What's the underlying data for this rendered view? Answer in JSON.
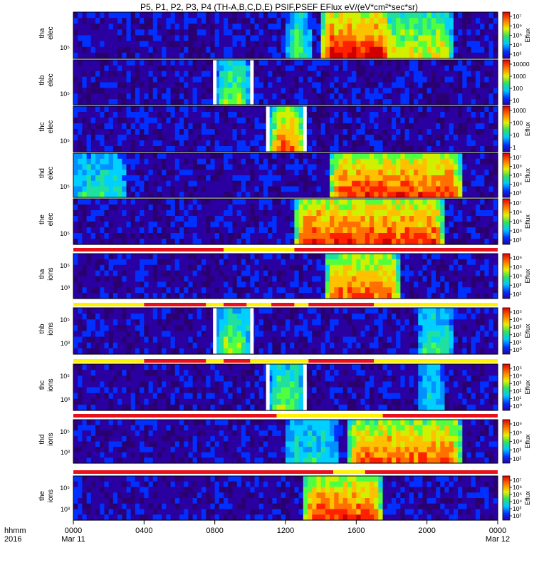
{
  "chart_data": {
    "type": "heatmap",
    "title": "P5, P1, P2, P3, P4 (TH-A,B,C,D,E) PSIF,PSEF EFlux eV/(eV*cm²*sec*sr)",
    "x_axis": {
      "label_line1": "hhmm",
      "label_line2": "2016",
      "ticks": [
        {
          "hour": 0,
          "label": "0000",
          "sublabel": "Mar 11"
        },
        {
          "hour": 4,
          "label": "0400",
          "sublabel": ""
        },
        {
          "hour": 8,
          "label": "0800",
          "sublabel": ""
        },
        {
          "hour": 12,
          "label": "1200",
          "sublabel": ""
        },
        {
          "hour": 16,
          "label": "1600",
          "sublabel": ""
        },
        {
          "hour": 20,
          "label": "2000",
          "sublabel": ""
        },
        {
          "hour": 24,
          "label": "0000",
          "sublabel": "Mar 12"
        }
      ],
      "range_hours": [
        0,
        24
      ]
    },
    "panels": [
      {
        "probe": "tha",
        "species": "elec",
        "ytick": "10⁵",
        "cbar_label": "Eflux",
        "cbar_ticks": [
          "10⁷",
          "10⁶",
          "10⁵",
          "10⁴",
          "10³"
        ],
        "activity": [
          [
            14.0,
            18.0,
            0.9
          ],
          [
            16.0,
            21.5,
            0.6
          ],
          [
            12.0,
            13.5,
            0.45
          ]
        ],
        "data_gaps": []
      },
      {
        "probe": "thb",
        "species": "elec",
        "ytick": "10⁵",
        "cbar_label": "",
        "cbar_ticks": [
          "10000",
          "1000",
          "100",
          "10"
        ],
        "activity": [
          [
            8.1,
            10.0,
            0.5
          ]
        ],
        "data_gaps": [
          [
            7.9,
            8.1
          ],
          [
            10.0,
            10.2
          ]
        ]
      },
      {
        "probe": "thc",
        "species": "elec",
        "ytick": "10⁵",
        "cbar_label": "Eflux",
        "cbar_ticks": [
          "1000",
          "100",
          "10",
          "1"
        ],
        "activity": [
          [
            11.1,
            13.0,
            0.8
          ]
        ],
        "data_gaps": [
          [
            10.9,
            11.1
          ],
          [
            13.0,
            13.2
          ]
        ]
      },
      {
        "probe": "thd",
        "species": "elec",
        "ytick": "10⁵",
        "cbar_label": "Eflux",
        "cbar_ticks": [
          "10⁷",
          "10⁶",
          "10⁵",
          "10⁴",
          "10³"
        ],
        "activity": [
          [
            14.5,
            22.0,
            0.85
          ],
          [
            0.0,
            3.0,
            0.35
          ]
        ],
        "data_gaps": []
      },
      {
        "probe": "the",
        "species": "elec",
        "ytick": "10⁵",
        "cbar_label": "Eflux",
        "cbar_ticks": [
          "10⁷",
          "10⁶",
          "10⁵",
          "10⁴",
          "10³"
        ],
        "activity": [
          [
            12.5,
            21.0,
            0.85
          ]
        ],
        "data_gaps": []
      },
      {
        "probe": "tha",
        "species": "ions",
        "ytick_upper": "10⁵",
        "ytick": "10³",
        "cbar_label": "Eflux",
        "cbar_ticks": [
          "10⁶",
          "10⁵",
          "10⁴",
          "10³",
          "10²"
        ],
        "activity": [
          [
            14.2,
            18.5,
            0.8
          ]
        ],
        "data_gaps": []
      },
      {
        "probe": "thb",
        "species": "ions",
        "ytick_upper": "10⁵",
        "ytick": "10³",
        "cbar_label": "Eflux",
        "cbar_ticks": [
          "10⁵",
          "10⁴",
          "10³",
          "10²",
          "10¹",
          "10⁰"
        ],
        "activity": [
          [
            8.1,
            10.0,
            0.5
          ],
          [
            19.5,
            21.5,
            0.4
          ]
        ],
        "data_gaps": [
          [
            7.9,
            8.1
          ],
          [
            10.0,
            10.2
          ]
        ]
      },
      {
        "probe": "thc",
        "species": "ions",
        "ytick_upper": "10⁵",
        "ytick": "10³",
        "cbar_label": "Eflux",
        "cbar_ticks": [
          "10⁵",
          "10⁴",
          "10³",
          "10²",
          "10¹",
          "10⁰"
        ],
        "activity": [
          [
            11.1,
            13.0,
            0.5
          ],
          [
            19.6,
            21.0,
            0.35
          ]
        ],
        "data_gaps": [
          [
            10.9,
            11.1
          ],
          [
            13.0,
            13.2
          ]
        ]
      },
      {
        "probe": "thd",
        "species": "ions",
        "ytick_upper": "10⁵",
        "ytick": "10³",
        "cbar_label": "Eflux",
        "cbar_ticks": [
          "10⁶",
          "10⁵",
          "10⁴",
          "10³",
          "10²"
        ],
        "activity": [
          [
            15.5,
            22.0,
            0.8
          ],
          [
            12.0,
            15.0,
            0.35
          ]
        ],
        "data_gaps": []
      },
      {
        "probe": "the",
        "species": "ions",
        "ytick_upper": "10⁵",
        "ytick": "10³",
        "cbar_label": "Eflux",
        "cbar_ticks": [
          "10⁷",
          "10⁶",
          "10⁵",
          "10⁴",
          "10³",
          "10²"
        ],
        "activity": [
          [
            13.0,
            17.5,
            0.85
          ]
        ],
        "data_gaps": []
      }
    ],
    "mode_bars": [
      {
        "above_panel": 5,
        "segments": [
          [
            0,
            8.5,
            "red"
          ],
          [
            8.5,
            12.5,
            "yellow"
          ],
          [
            12.5,
            24,
            "red"
          ]
        ]
      },
      {
        "above_panel": 6,
        "segments": [
          [
            0,
            4,
            "yellow"
          ],
          [
            4,
            7.5,
            "red"
          ],
          [
            7.5,
            8.5,
            "yellow"
          ],
          [
            8.5,
            9.8,
            "red"
          ],
          [
            9.8,
            11.2,
            "yellow"
          ],
          [
            11.2,
            12.5,
            "red"
          ],
          [
            12.5,
            13.3,
            "yellow"
          ],
          [
            13.3,
            17,
            "red"
          ],
          [
            17,
            24,
            "yellow"
          ]
        ]
      },
      {
        "above_panel": 7,
        "segments": [
          [
            0,
            4,
            "yellow"
          ],
          [
            4,
            7.5,
            "red"
          ],
          [
            7.5,
            8.5,
            "yellow"
          ],
          [
            8.5,
            10,
            "red"
          ],
          [
            10,
            13.3,
            "yellow"
          ],
          [
            13.3,
            17,
            "red"
          ],
          [
            17,
            24,
            "yellow"
          ]
        ]
      },
      {
        "above_panel": 8,
        "segments": [
          [
            0,
            11.5,
            "red"
          ],
          [
            11.5,
            17.5,
            "yellow"
          ],
          [
            17.5,
            24,
            "red"
          ]
        ]
      },
      {
        "above_panel": 9,
        "segments": [
          [
            0,
            14.7,
            "red"
          ],
          [
            14.7,
            16.5,
            "yellow"
          ],
          [
            16.5,
            24,
            "red"
          ]
        ]
      }
    ],
    "colors": {
      "mode_red": "#e8101a",
      "mode_yellow": "#fff200",
      "background": "#ffffff",
      "low_flux": "#1a0030"
    }
  }
}
